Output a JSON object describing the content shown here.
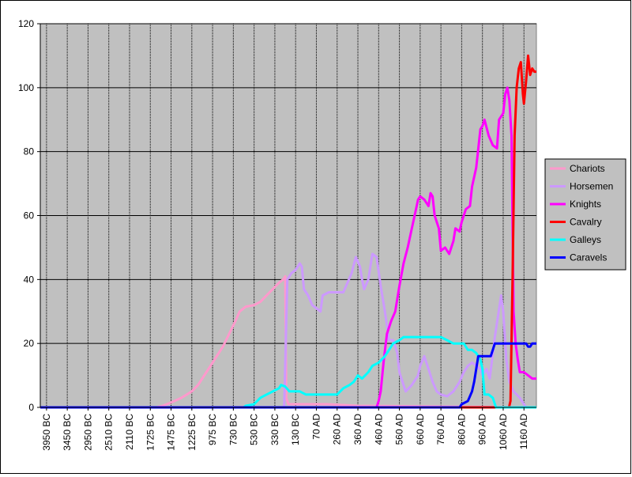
{
  "chart_data": {
    "type": "line",
    "title": "",
    "xlabel": "",
    "ylabel": "",
    "ylim": [
      0,
      120
    ],
    "yticks": [
      0,
      20,
      40,
      60,
      80,
      100,
      120
    ],
    "grid": true,
    "plot_background": "#c0c0c0",
    "legend_position": "right",
    "x_tick_labels": [
      "3950 BC",
      "3450 BC",
      "2950 BC",
      "2510 BC",
      "2110 BC",
      "1725 BC",
      "1475 BC",
      "1225 BC",
      "975 BC",
      "730 BC",
      "530 BC",
      "330 BC",
      "130 BC",
      "70 AD",
      "260 AD",
      "360 AD",
      "460 AD",
      "560 AD",
      "660 AD",
      "760 AD",
      "860 AD",
      "960 AD",
      "1060 AD",
      "1160 AD"
    ],
    "x_label_positions": [
      0,
      1,
      2,
      3,
      4,
      5,
      6,
      7,
      8,
      9,
      10,
      11,
      12,
      13,
      14,
      15,
      16,
      17,
      18,
      19,
      20,
      21,
      22,
      23
    ],
    "x_range": [
      -0.3,
      23.6
    ],
    "series": [
      {
        "name": "Chariots",
        "color": "#ff99cc",
        "points": [
          [
            -0.3,
            0
          ],
          [
            5.3,
            0
          ],
          [
            5.6,
            0.5
          ],
          [
            6.0,
            1.5
          ],
          [
            6.5,
            3
          ],
          [
            7.0,
            5
          ],
          [
            7.3,
            7
          ],
          [
            7.6,
            10
          ],
          [
            7.9,
            13
          ],
          [
            8.2,
            16
          ],
          [
            8.5,
            19
          ],
          [
            8.8,
            23
          ],
          [
            9.1,
            27
          ],
          [
            9.3,
            30
          ],
          [
            9.6,
            31.5
          ],
          [
            10.0,
            32
          ],
          [
            10.3,
            33
          ],
          [
            10.6,
            35
          ],
          [
            10.9,
            37
          ],
          [
            11.2,
            39
          ],
          [
            11.4,
            40
          ],
          [
            11.5,
            41
          ],
          [
            11.55,
            3
          ],
          [
            11.65,
            1
          ],
          [
            13.5,
            1
          ],
          [
            15.0,
            0.5
          ],
          [
            23.6,
            0
          ]
        ]
      },
      {
        "name": "Horsemen",
        "color": "#cc99ff",
        "points": [
          [
            -0.3,
            0
          ],
          [
            11.45,
            0
          ],
          [
            11.6,
            40
          ],
          [
            11.8,
            42
          ],
          [
            12.0,
            43
          ],
          [
            12.2,
            45
          ],
          [
            12.3,
            44
          ],
          [
            12.4,
            37
          ],
          [
            12.6,
            35
          ],
          [
            12.8,
            32
          ],
          [
            13.0,
            31
          ],
          [
            13.2,
            30
          ],
          [
            13.3,
            35
          ],
          [
            13.6,
            36
          ],
          [
            14.0,
            36
          ],
          [
            14.3,
            36
          ],
          [
            14.5,
            39
          ],
          [
            14.7,
            42
          ],
          [
            14.9,
            47
          ],
          [
            15.1,
            44
          ],
          [
            15.2,
            40
          ],
          [
            15.3,
            37
          ],
          [
            15.5,
            40
          ],
          [
            15.7,
            48
          ],
          [
            15.9,
            47
          ],
          [
            16.1,
            38
          ],
          [
            16.3,
            30
          ],
          [
            16.5,
            21
          ],
          [
            16.7,
            21
          ],
          [
            16.9,
            17
          ],
          [
            17.0,
            11
          ],
          [
            17.1,
            9
          ],
          [
            17.3,
            5
          ],
          [
            17.6,
            7
          ],
          [
            17.9,
            10
          ],
          [
            18.0,
            13
          ],
          [
            18.2,
            16
          ],
          [
            18.4,
            12
          ],
          [
            18.6,
            8
          ],
          [
            18.8,
            5
          ],
          [
            19.0,
            4
          ],
          [
            19.3,
            3.5
          ],
          [
            19.6,
            5
          ],
          [
            19.9,
            8
          ],
          [
            20.1,
            11
          ],
          [
            20.3,
            13
          ],
          [
            20.5,
            14
          ],
          [
            20.7,
            13
          ],
          [
            20.9,
            12
          ],
          [
            21.0,
            10
          ],
          [
            21.2,
            12
          ],
          [
            21.35,
            9
          ],
          [
            21.6,
            22
          ],
          [
            21.9,
            35
          ],
          [
            22.0,
            30
          ],
          [
            22.15,
            15
          ],
          [
            22.3,
            8
          ],
          [
            22.5,
            5
          ],
          [
            22.8,
            3
          ],
          [
            23.0,
            1
          ],
          [
            23.1,
            0
          ],
          [
            23.6,
            0
          ]
        ]
      },
      {
        "name": "Knights",
        "color": "#ff00ff",
        "points": [
          [
            -0.3,
            0
          ],
          [
            15.9,
            0
          ],
          [
            16.0,
            2
          ],
          [
            16.1,
            5
          ],
          [
            16.25,
            15
          ],
          [
            16.4,
            23
          ],
          [
            16.6,
            27
          ],
          [
            16.8,
            30
          ],
          [
            17.0,
            38
          ],
          [
            17.2,
            45
          ],
          [
            17.4,
            50
          ],
          [
            17.6,
            56
          ],
          [
            17.8,
            62
          ],
          [
            17.9,
            65
          ],
          [
            18.0,
            66
          ],
          [
            18.2,
            65
          ],
          [
            18.4,
            63
          ],
          [
            18.5,
            67
          ],
          [
            18.6,
            66
          ],
          [
            18.7,
            60
          ],
          [
            18.9,
            56
          ],
          [
            19.0,
            49
          ],
          [
            19.2,
            50
          ],
          [
            19.4,
            48
          ],
          [
            19.6,
            52
          ],
          [
            19.7,
            56
          ],
          [
            19.9,
            55
          ],
          [
            20.0,
            58
          ],
          [
            20.2,
            62
          ],
          [
            20.4,
            63
          ],
          [
            20.5,
            69
          ],
          [
            20.7,
            75
          ],
          [
            20.9,
            87
          ],
          [
            21.0,
            88
          ],
          [
            21.1,
            90
          ],
          [
            21.3,
            85
          ],
          [
            21.5,
            82
          ],
          [
            21.7,
            81
          ],
          [
            21.8,
            90
          ],
          [
            22.0,
            92
          ],
          [
            22.1,
            98
          ],
          [
            22.2,
            100
          ],
          [
            22.3,
            96
          ],
          [
            22.4,
            85
          ],
          [
            22.5,
            30
          ],
          [
            22.6,
            20
          ],
          [
            22.7,
            15
          ],
          [
            22.8,
            11
          ],
          [
            23.0,
            11
          ],
          [
            23.2,
            10
          ],
          [
            23.4,
            9
          ],
          [
            23.6,
            9
          ]
        ]
      },
      {
        "name": "Cavalry",
        "color": "#ff0000",
        "points": [
          [
            -0.3,
            0
          ],
          [
            22.28,
            0
          ],
          [
            22.35,
            2
          ],
          [
            22.45,
            40
          ],
          [
            22.55,
            85
          ],
          [
            22.65,
            100
          ],
          [
            22.75,
            106
          ],
          [
            22.85,
            108
          ],
          [
            22.95,
            98
          ],
          [
            23.0,
            95
          ],
          [
            23.1,
            102
          ],
          [
            23.2,
            110
          ],
          [
            23.3,
            104
          ],
          [
            23.4,
            106
          ],
          [
            23.5,
            105
          ],
          [
            23.6,
            105
          ]
        ]
      },
      {
        "name": "Galleys",
        "color": "#00ffff",
        "points": [
          [
            -0.3,
            0
          ],
          [
            9.5,
            0
          ],
          [
            9.6,
            0.5
          ],
          [
            10.0,
            1
          ],
          [
            10.3,
            3
          ],
          [
            10.6,
            4
          ],
          [
            10.9,
            5
          ],
          [
            11.2,
            6
          ],
          [
            11.3,
            7
          ],
          [
            11.5,
            6.5
          ],
          [
            11.7,
            5
          ],
          [
            12.0,
            5
          ],
          [
            12.2,
            5
          ],
          [
            12.5,
            4
          ],
          [
            12.8,
            4
          ],
          [
            13.2,
            4
          ],
          [
            13.6,
            4
          ],
          [
            14.0,
            4
          ],
          [
            14.3,
            6
          ],
          [
            14.6,
            7
          ],
          [
            14.8,
            8
          ],
          [
            15.0,
            10
          ],
          [
            15.2,
            9
          ],
          [
            15.5,
            11
          ],
          [
            15.7,
            13
          ],
          [
            16.0,
            14
          ],
          [
            16.3,
            16
          ],
          [
            16.5,
            18
          ],
          [
            16.7,
            20
          ],
          [
            17.0,
            21
          ],
          [
            17.2,
            22
          ],
          [
            17.5,
            22
          ],
          [
            17.8,
            22
          ],
          [
            18.1,
            22
          ],
          [
            18.4,
            22
          ],
          [
            18.7,
            22
          ],
          [
            19.0,
            22
          ],
          [
            19.3,
            21
          ],
          [
            19.6,
            20
          ],
          [
            19.9,
            20
          ],
          [
            20.1,
            20
          ],
          [
            20.3,
            18
          ],
          [
            20.5,
            18
          ],
          [
            20.7,
            17
          ],
          [
            20.9,
            15
          ],
          [
            21.0,
            12
          ],
          [
            21.1,
            4
          ],
          [
            21.3,
            4
          ],
          [
            21.5,
            3
          ],
          [
            21.65,
            0
          ],
          [
            23.6,
            0
          ]
        ]
      },
      {
        "name": "Caravels",
        "color": "#0000ff",
        "points": [
          [
            -0.3,
            0
          ],
          [
            19.9,
            0
          ],
          [
            20.0,
            1
          ],
          [
            20.3,
            2
          ],
          [
            20.5,
            5
          ],
          [
            20.6,
            8
          ],
          [
            20.8,
            16
          ],
          [
            21.0,
            16
          ],
          [
            21.2,
            16
          ],
          [
            21.4,
            16
          ],
          [
            21.5,
            18
          ],
          [
            21.6,
            20
          ],
          [
            21.8,
            20
          ],
          [
            22.0,
            20
          ],
          [
            22.3,
            20
          ],
          [
            22.6,
            20
          ],
          [
            22.9,
            20
          ],
          [
            23.1,
            20
          ],
          [
            23.2,
            19
          ],
          [
            23.3,
            19
          ],
          [
            23.4,
            20
          ],
          [
            23.6,
            20
          ]
        ]
      }
    ]
  }
}
